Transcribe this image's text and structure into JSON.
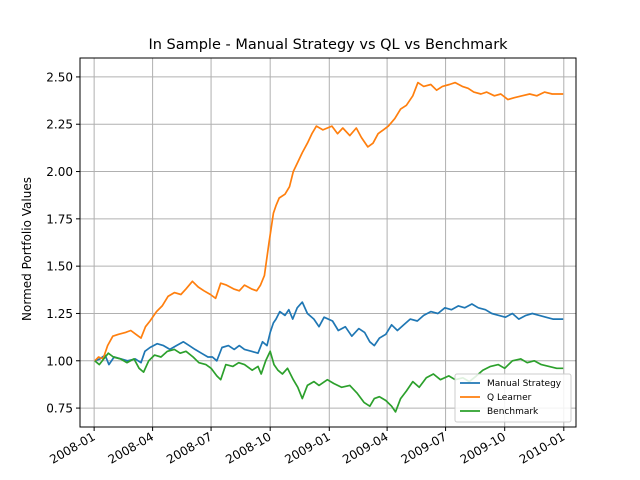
{
  "chart_data": {
    "type": "line",
    "title": "In Sample - Manual Strategy vs QL vs Benchmark",
    "xlabel": "",
    "ylabel": "Normed Portfolio Values",
    "xlim": [
      "2007-12-10",
      "2010-01-20"
    ],
    "ylim": [
      0.65,
      2.6
    ],
    "xticks": [
      {
        "value": "2008-01-01",
        "label": "2008-01"
      },
      {
        "value": "2008-04-01",
        "label": "2008-04"
      },
      {
        "value": "2008-07-01",
        "label": "2008-07"
      },
      {
        "value": "2008-10-01",
        "label": "2008-10"
      },
      {
        "value": "2009-01-01",
        "label": "2009-01"
      },
      {
        "value": "2009-04-01",
        "label": "2009-04"
      },
      {
        "value": "2009-07-01",
        "label": "2009-07"
      },
      {
        "value": "2009-10-01",
        "label": "2009-10"
      },
      {
        "value": "2010-01-01",
        "label": "2010-01"
      }
    ],
    "yticks": [
      {
        "value": 0.75,
        "label": "0.75"
      },
      {
        "value": 1.0,
        "label": "1.00"
      },
      {
        "value": 1.25,
        "label": "1.25"
      },
      {
        "value": 1.5,
        "label": "1.50"
      },
      {
        "value": 1.75,
        "label": "1.75"
      },
      {
        "value": 2.0,
        "label": "2.00"
      },
      {
        "value": 2.25,
        "label": "2.25"
      },
      {
        "value": 2.5,
        "label": "2.50"
      }
    ],
    "grid": true,
    "legend_position": "lower-right",
    "series": [
      {
        "name": "Manual Strategy",
        "color": "#1f77b4",
        "points": [
          [
            "2008-01-02",
            1.0
          ],
          [
            "2008-01-10",
            1.01
          ],
          [
            "2008-01-18",
            1.03
          ],
          [
            "2008-01-24",
            0.98
          ],
          [
            "2008-02-01",
            1.02
          ],
          [
            "2008-02-12",
            1.01
          ],
          [
            "2008-02-22",
            1.0
          ],
          [
            "2008-03-05",
            1.01
          ],
          [
            "2008-03-14",
            0.99
          ],
          [
            "2008-03-20",
            1.05
          ],
          [
            "2008-03-28",
            1.07
          ],
          [
            "2008-04-08",
            1.09
          ],
          [
            "2008-04-18",
            1.08
          ],
          [
            "2008-04-28",
            1.06
          ],
          [
            "2008-05-08",
            1.08
          ],
          [
            "2008-05-19",
            1.1
          ],
          [
            "2008-05-28",
            1.08
          ],
          [
            "2008-06-06",
            1.06
          ],
          [
            "2008-06-16",
            1.04
          ],
          [
            "2008-06-26",
            1.02
          ],
          [
            "2008-07-03",
            1.02
          ],
          [
            "2008-07-10",
            1.0
          ],
          [
            "2008-07-18",
            1.07
          ],
          [
            "2008-07-28",
            1.08
          ],
          [
            "2008-08-06",
            1.06
          ],
          [
            "2008-08-14",
            1.08
          ],
          [
            "2008-08-22",
            1.06
          ],
          [
            "2008-09-02",
            1.05
          ],
          [
            "2008-09-12",
            1.04
          ],
          [
            "2008-09-19",
            1.1
          ],
          [
            "2008-09-26",
            1.08
          ],
          [
            "2008-10-01",
            1.15
          ],
          [
            "2008-10-06",
            1.2
          ],
          [
            "2008-10-10",
            1.22
          ],
          [
            "2008-10-16",
            1.26
          ],
          [
            "2008-10-24",
            1.24
          ],
          [
            "2008-10-30",
            1.27
          ],
          [
            "2008-11-05",
            1.22
          ],
          [
            "2008-11-12",
            1.28
          ],
          [
            "2008-11-20",
            1.31
          ],
          [
            "2008-11-28",
            1.25
          ],
          [
            "2008-12-08",
            1.22
          ],
          [
            "2008-12-16",
            1.18
          ],
          [
            "2008-12-24",
            1.23
          ],
          [
            "2009-01-06",
            1.21
          ],
          [
            "2009-01-15",
            1.16
          ],
          [
            "2009-01-26",
            1.18
          ],
          [
            "2009-02-05",
            1.13
          ],
          [
            "2009-02-16",
            1.17
          ],
          [
            "2009-02-25",
            1.15
          ],
          [
            "2009-03-05",
            1.1
          ],
          [
            "2009-03-12",
            1.08
          ],
          [
            "2009-03-20",
            1.12
          ],
          [
            "2009-03-30",
            1.14
          ],
          [
            "2009-04-08",
            1.19
          ],
          [
            "2009-04-17",
            1.16
          ],
          [
            "2009-04-27",
            1.19
          ],
          [
            "2009-05-07",
            1.22
          ],
          [
            "2009-05-18",
            1.21
          ],
          [
            "2009-05-28",
            1.24
          ],
          [
            "2009-06-08",
            1.26
          ],
          [
            "2009-06-19",
            1.25
          ],
          [
            "2009-06-30",
            1.28
          ],
          [
            "2009-07-10",
            1.27
          ],
          [
            "2009-07-21",
            1.29
          ],
          [
            "2009-07-31",
            1.28
          ],
          [
            "2009-08-11",
            1.3
          ],
          [
            "2009-08-21",
            1.28
          ],
          [
            "2009-09-01",
            1.27
          ],
          [
            "2009-09-11",
            1.25
          ],
          [
            "2009-09-22",
            1.24
          ],
          [
            "2009-10-02",
            1.23
          ],
          [
            "2009-10-13",
            1.25
          ],
          [
            "2009-10-23",
            1.22
          ],
          [
            "2009-11-03",
            1.24
          ],
          [
            "2009-11-13",
            1.25
          ],
          [
            "2009-11-24",
            1.24
          ],
          [
            "2009-12-04",
            1.23
          ],
          [
            "2009-12-15",
            1.22
          ],
          [
            "2009-12-31",
            1.22
          ]
        ]
      },
      {
        "name": "Q Learner",
        "color": "#ff7f0e",
        "points": [
          [
            "2008-01-02",
            1.0
          ],
          [
            "2008-01-08",
            1.02
          ],
          [
            "2008-01-15",
            1.01
          ],
          [
            "2008-01-22",
            1.08
          ],
          [
            "2008-01-30",
            1.13
          ],
          [
            "2008-02-08",
            1.14
          ],
          [
            "2008-02-19",
            1.15
          ],
          [
            "2008-02-27",
            1.16
          ],
          [
            "2008-03-06",
            1.14
          ],
          [
            "2008-03-14",
            1.12
          ],
          [
            "2008-03-21",
            1.18
          ],
          [
            "2008-03-28",
            1.21
          ],
          [
            "2008-04-07",
            1.26
          ],
          [
            "2008-04-16",
            1.29
          ],
          [
            "2008-04-25",
            1.34
          ],
          [
            "2008-05-05",
            1.36
          ],
          [
            "2008-05-15",
            1.35
          ],
          [
            "2008-05-23",
            1.38
          ],
          [
            "2008-06-02",
            1.42
          ],
          [
            "2008-06-11",
            1.39
          ],
          [
            "2008-06-20",
            1.37
          ],
          [
            "2008-06-30",
            1.35
          ],
          [
            "2008-07-08",
            1.33
          ],
          [
            "2008-07-16",
            1.41
          ],
          [
            "2008-07-25",
            1.4
          ],
          [
            "2008-08-05",
            1.38
          ],
          [
            "2008-08-14",
            1.37
          ],
          [
            "2008-08-22",
            1.4
          ],
          [
            "2008-09-02",
            1.38
          ],
          [
            "2008-09-10",
            1.37
          ],
          [
            "2008-09-16",
            1.4
          ],
          [
            "2008-09-22",
            1.45
          ],
          [
            "2008-09-29",
            1.62
          ],
          [
            "2008-10-06",
            1.78
          ],
          [
            "2008-10-10",
            1.82
          ],
          [
            "2008-10-15",
            1.86
          ],
          [
            "2008-10-24",
            1.88
          ],
          [
            "2008-10-31",
            1.92
          ],
          [
            "2008-11-06",
            2.0
          ],
          [
            "2008-11-13",
            2.05
          ],
          [
            "2008-11-20",
            2.1
          ],
          [
            "2008-11-28",
            2.15
          ],
          [
            "2008-12-05",
            2.2
          ],
          [
            "2008-12-12",
            2.24
          ],
          [
            "2008-12-22",
            2.22
          ],
          [
            "2009-01-05",
            2.24
          ],
          [
            "2009-01-14",
            2.2
          ],
          [
            "2009-01-22",
            2.23
          ],
          [
            "2009-02-02",
            2.19
          ],
          [
            "2009-02-12",
            2.23
          ],
          [
            "2009-02-20",
            2.18
          ],
          [
            "2009-03-02",
            2.13
          ],
          [
            "2009-03-10",
            2.15
          ],
          [
            "2009-03-18",
            2.2
          ],
          [
            "2009-03-26",
            2.22
          ],
          [
            "2009-04-03",
            2.24
          ],
          [
            "2009-04-13",
            2.28
          ],
          [
            "2009-04-22",
            2.33
          ],
          [
            "2009-05-01",
            2.35
          ],
          [
            "2009-05-11",
            2.4
          ],
          [
            "2009-05-19",
            2.47
          ],
          [
            "2009-05-28",
            2.45
          ],
          [
            "2009-06-08",
            2.46
          ],
          [
            "2009-06-17",
            2.43
          ],
          [
            "2009-06-26",
            2.45
          ],
          [
            "2009-07-07",
            2.46
          ],
          [
            "2009-07-16",
            2.47
          ],
          [
            "2009-07-27",
            2.45
          ],
          [
            "2009-08-05",
            2.44
          ],
          [
            "2009-08-14",
            2.42
          ],
          [
            "2009-08-25",
            2.41
          ],
          [
            "2009-09-03",
            2.42
          ],
          [
            "2009-09-15",
            2.4
          ],
          [
            "2009-09-25",
            2.41
          ],
          [
            "2009-10-06",
            2.38
          ],
          [
            "2009-10-16",
            2.39
          ],
          [
            "2009-10-28",
            2.4
          ],
          [
            "2009-11-09",
            2.41
          ],
          [
            "2009-11-20",
            2.4
          ],
          [
            "2009-12-02",
            2.42
          ],
          [
            "2009-12-14",
            2.41
          ],
          [
            "2009-12-31",
            2.41
          ]
        ]
      },
      {
        "name": "Benchmark",
        "color": "#2ca02c",
        "points": [
          [
            "2008-01-02",
            1.0
          ],
          [
            "2008-01-09",
            0.98
          ],
          [
            "2008-01-16",
            1.01
          ],
          [
            "2008-01-23",
            1.04
          ],
          [
            "2008-01-31",
            1.02
          ],
          [
            "2008-02-11",
            1.01
          ],
          [
            "2008-02-21",
            0.99
          ],
          [
            "2008-03-03",
            1.01
          ],
          [
            "2008-03-11",
            0.96
          ],
          [
            "2008-03-18",
            0.94
          ],
          [
            "2008-03-26",
            1.0
          ],
          [
            "2008-04-04",
            1.03
          ],
          [
            "2008-04-14",
            1.02
          ],
          [
            "2008-04-24",
            1.05
          ],
          [
            "2008-05-05",
            1.06
          ],
          [
            "2008-05-14",
            1.04
          ],
          [
            "2008-05-23",
            1.05
          ],
          [
            "2008-06-03",
            1.02
          ],
          [
            "2008-06-12",
            0.99
          ],
          [
            "2008-06-23",
            0.98
          ],
          [
            "2008-07-01",
            0.96
          ],
          [
            "2008-07-10",
            0.92
          ],
          [
            "2008-07-16",
            0.9
          ],
          [
            "2008-07-24",
            0.98
          ],
          [
            "2008-08-04",
            0.97
          ],
          [
            "2008-08-13",
            0.99
          ],
          [
            "2008-08-22",
            0.98
          ],
          [
            "2008-09-03",
            0.95
          ],
          [
            "2008-09-12",
            0.97
          ],
          [
            "2008-09-17",
            0.93
          ],
          [
            "2008-09-24",
            1.0
          ],
          [
            "2008-10-01",
            1.05
          ],
          [
            "2008-10-07",
            0.98
          ],
          [
            "2008-10-13",
            0.95
          ],
          [
            "2008-10-20",
            0.93
          ],
          [
            "2008-10-28",
            0.96
          ],
          [
            "2008-11-06",
            0.9
          ],
          [
            "2008-11-13",
            0.86
          ],
          [
            "2008-11-20",
            0.8
          ],
          [
            "2008-11-28",
            0.87
          ],
          [
            "2008-12-08",
            0.89
          ],
          [
            "2008-12-16",
            0.87
          ],
          [
            "2008-12-29",
            0.9
          ],
          [
            "2009-01-08",
            0.88
          ],
          [
            "2009-01-20",
            0.86
          ],
          [
            "2009-02-02",
            0.87
          ],
          [
            "2009-02-13",
            0.83
          ],
          [
            "2009-02-24",
            0.78
          ],
          [
            "2009-03-05",
            0.76
          ],
          [
            "2009-03-12",
            0.8
          ],
          [
            "2009-03-20",
            0.81
          ],
          [
            "2009-03-30",
            0.79
          ],
          [
            "2009-04-08",
            0.76
          ],
          [
            "2009-04-14",
            0.73
          ],
          [
            "2009-04-22",
            0.8
          ],
          [
            "2009-05-01",
            0.84
          ],
          [
            "2009-05-11",
            0.89
          ],
          [
            "2009-05-21",
            0.86
          ],
          [
            "2009-06-01",
            0.91
          ],
          [
            "2009-06-12",
            0.93
          ],
          [
            "2009-06-23",
            0.9
          ],
          [
            "2009-07-06",
            0.92
          ],
          [
            "2009-07-16",
            0.9
          ],
          [
            "2009-07-28",
            0.91
          ],
          [
            "2009-08-07",
            0.89
          ],
          [
            "2009-08-18",
            0.92
          ],
          [
            "2009-08-28",
            0.95
          ],
          [
            "2009-09-09",
            0.97
          ],
          [
            "2009-09-21",
            0.98
          ],
          [
            "2009-10-01",
            0.96
          ],
          [
            "2009-10-13",
            1.0
          ],
          [
            "2009-10-26",
            1.01
          ],
          [
            "2009-11-05",
            0.99
          ],
          [
            "2009-11-16",
            1.0
          ],
          [
            "2009-11-27",
            0.98
          ],
          [
            "2009-12-09",
            0.97
          ],
          [
            "2009-12-21",
            0.96
          ],
          [
            "2009-12-31",
            0.96
          ]
        ]
      }
    ]
  }
}
